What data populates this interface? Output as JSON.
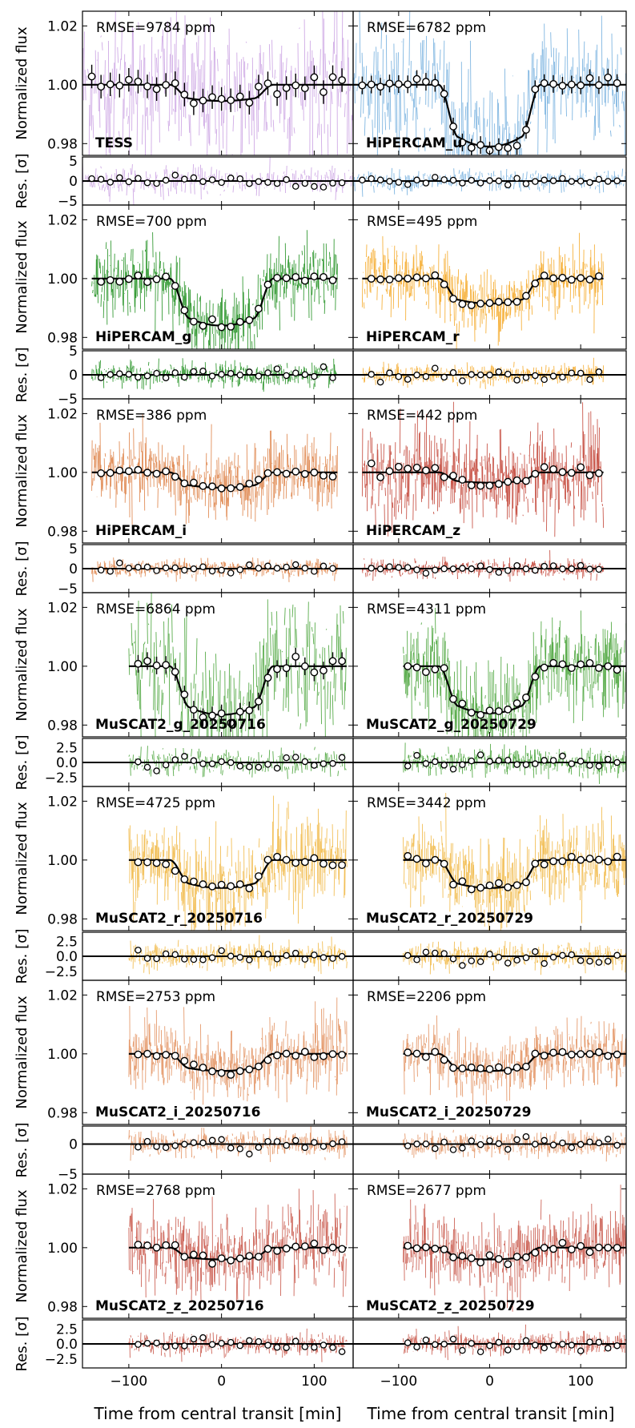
{
  "figure": {
    "x_axis_label": "Time from central transit [min]",
    "flux_axis_label": "Normalized flux",
    "residual_axis_label": "Res. [σ]"
  },
  "chart_data": {
    "type": "line",
    "description_free": true,
    "x_ticks": [
      "-100",
      "0",
      "100"
    ],
    "xlim_left": [
      -150,
      142
    ],
    "xlim_right": [
      -150,
      150
    ],
    "flux_ylim": [
      0.976,
      1.025
    ],
    "flux_ticks": [
      "1.02",
      "1.00",
      "0.98"
    ],
    "colors": {
      "TESS": "#c79be0",
      "HiPERCAM_u": "#6aa9dc",
      "HiPERCAM_g": "#138a13",
      "HiPERCAM_r": "#f4a51c",
      "HiPERCAM_i": "#dc7a3c",
      "HiPERCAM_z": "#c0392b",
      "MuSCAT2_g": "#3c9e2c",
      "MuSCAT2_r": "#f0b43a",
      "MuSCAT2_i": "#e08a55",
      "MuSCAT2_z": "#c44a3c",
      "model": "#000000"
    },
    "rows": [
      {
        "res_ylim": [
          -6,
          6
        ],
        "res_ticks": [
          "5",
          "0",
          "-5"
        ],
        "panels": [
          {
            "label": "TESS",
            "rmse": "RMSE=9784 ppm",
            "color_key": "TESS",
            "t_start": -150,
            "t_end": 142,
            "depth": 0.0055,
            "t14": 112,
            "ingress": 22,
            "noise": 0.013,
            "res_noise": 4.0,
            "binned_err": 0.004
          },
          {
            "label": "HiPERCAM_u",
            "rmse": "RMSE=6782 ppm",
            "color_key": "HiPERCAM_u",
            "t_start": -150,
            "t_end": 150,
            "depth": 0.021,
            "t14": 112,
            "ingress": 22,
            "noise": 0.011,
            "res_noise": 3.0,
            "binned_err": 0.003
          }
        ]
      },
      {
        "res_ylim": [
          -5,
          5
        ],
        "res_ticks": [
          "5",
          "0",
          "-5"
        ],
        "panels": [
          {
            "label": "HiPERCAM_g",
            "rmse": "RMSE=700 ppm",
            "color_key": "HiPERCAM_g",
            "t_start": -140,
            "t_end": 125,
            "depth": 0.016,
            "t14": 112,
            "ingress": 22,
            "noise": 0.006,
            "res_noise": 2.6,
            "binned_err": 0.0
          },
          {
            "label": "HiPERCAM_r",
            "rmse": "RMSE=495 ppm",
            "color_key": "HiPERCAM_r",
            "t_start": -140,
            "t_end": 125,
            "depth": 0.0085,
            "t14": 112,
            "ingress": 22,
            "noise": 0.0055,
            "res_noise": 2.2,
            "binned_err": 0.0
          }
        ]
      },
      {
        "res_ylim": [
          -6,
          6
        ],
        "res_ticks": [
          "5",
          "0",
          "-5"
        ],
        "panels": [
          {
            "label": "HiPERCAM_i",
            "rmse": "RMSE=386 ppm",
            "color_key": "HiPERCAM_i",
            "t_start": -140,
            "t_end": 125,
            "depth": 0.0052,
            "t14": 112,
            "ingress": 22,
            "noise": 0.006,
            "res_noise": 2.4,
            "binned_err": 0.0
          },
          {
            "label": "HiPERCAM_z",
            "rmse": "RMSE=442 ppm",
            "color_key": "HiPERCAM_z",
            "t_start": -140,
            "t_end": 125,
            "depth": 0.0035,
            "t14": 112,
            "ingress": 22,
            "noise": 0.008,
            "res_noise": 2.4,
            "binned_err": 0.0
          }
        ]
      },
      {
        "res_ylim": [
          -4,
          4
        ],
        "res_ticks": [
          "2.5",
          "0.0",
          "-2.5"
        ],
        "panels": [
          {
            "label": "MuSCAT2_g_20250716",
            "rmse": "RMSE=6864 ppm",
            "color_key": "MuSCAT2_g",
            "t_start": -100,
            "t_end": 135,
            "depth": 0.0165,
            "t14": 112,
            "ingress": 22,
            "noise": 0.011,
            "res_noise": 2.4,
            "binned_err": 0.003
          },
          {
            "label": "MuSCAT2_g_20250729",
            "rmse": "RMSE=4311 ppm",
            "color_key": "MuSCAT2_g",
            "t_start": -95,
            "t_end": 150,
            "depth": 0.016,
            "t14": 112,
            "ingress": 22,
            "noise": 0.008,
            "res_noise": 2.4,
            "binned_err": 0.0
          }
        ]
      },
      {
        "res_ylim": [
          -4,
          4
        ],
        "res_ticks": [
          "2.5",
          "0.0",
          "-2.5"
        ],
        "panels": [
          {
            "label": "MuSCAT2_r_20250716",
            "rmse": "RMSE=4725 ppm",
            "color_key": "MuSCAT2_r",
            "t_start": -100,
            "t_end": 135,
            "depth": 0.0095,
            "t14": 112,
            "ingress": 22,
            "noise": 0.008,
            "res_noise": 2.2,
            "binned_err": 0.0
          },
          {
            "label": "MuSCAT2_r_20250729",
            "rmse": "RMSE=3442 ppm",
            "color_key": "MuSCAT2_r",
            "t_start": -95,
            "t_end": 150,
            "depth": 0.0095,
            "t14": 112,
            "ingress": 22,
            "noise": 0.007,
            "res_noise": 2.2,
            "binned_err": 0.0
          }
        ]
      },
      {
        "res_ylim": [
          -5,
          3
        ],
        "res_ticks": [
          "0",
          "-5"
        ],
        "panels": [
          {
            "label": "MuSCAT2_i_20250716",
            "rmse": "RMSE=2753 ppm",
            "color_key": "MuSCAT2_i",
            "t_start": -100,
            "t_end": 135,
            "depth": 0.0058,
            "t14": 112,
            "ingress": 22,
            "noise": 0.006,
            "res_noise": 2.2,
            "binned_err": 0.0
          },
          {
            "label": "MuSCAT2_i_20250729",
            "rmse": "RMSE=2206 ppm",
            "color_key": "MuSCAT2_i",
            "t_start": -95,
            "t_end": 150,
            "depth": 0.0058,
            "t14": 112,
            "ingress": 22,
            "noise": 0.005,
            "res_noise": 2.2,
            "binned_err": 0.0
          }
        ]
      },
      {
        "res_ylim": [
          -4,
          4
        ],
        "res_ticks": [
          "2.5",
          "0.0",
          "-2.5"
        ],
        "panels": [
          {
            "label": "MuSCAT2_z_20250716",
            "rmse": "RMSE=2768 ppm",
            "color_key": "MuSCAT2_z",
            "t_start": -100,
            "t_end": 135,
            "depth": 0.004,
            "t14": 112,
            "ingress": 22,
            "noise": 0.007,
            "res_noise": 2.0,
            "binned_err": 0.0
          },
          {
            "label": "MuSCAT2_z_20250729",
            "rmse": "RMSE=2677 ppm",
            "color_key": "MuSCAT2_z",
            "t_start": -95,
            "t_end": 150,
            "depth": 0.004,
            "t14": 112,
            "ingress": 22,
            "noise": 0.006,
            "res_noise": 2.0,
            "binned_err": 0.0
          }
        ]
      }
    ]
  }
}
